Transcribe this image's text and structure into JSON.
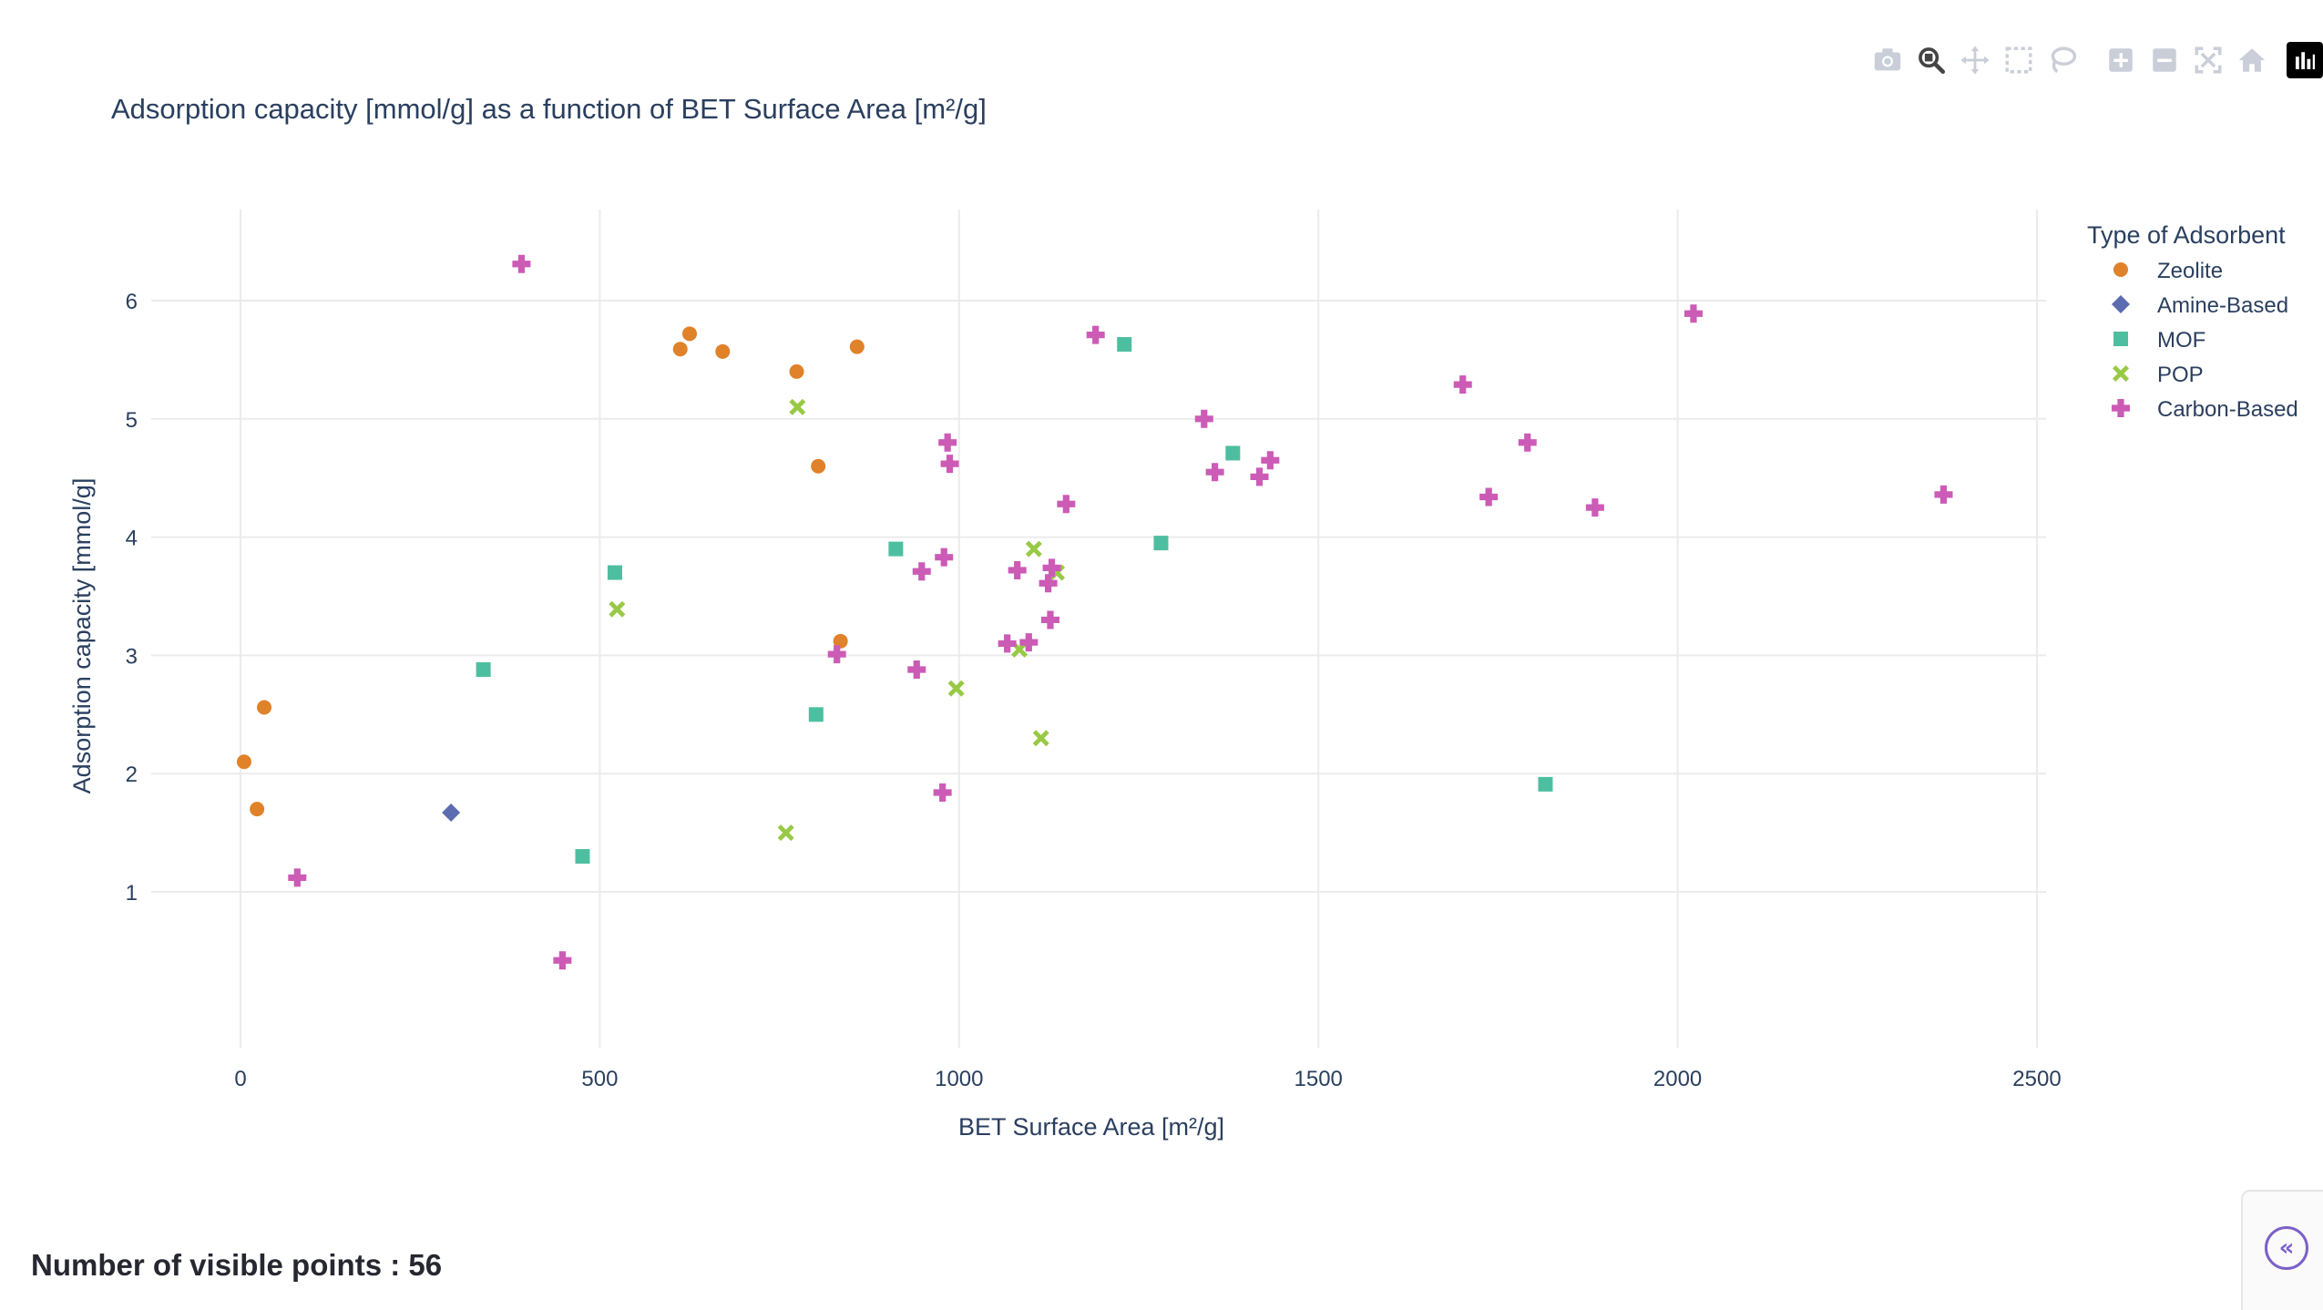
{
  "modebar": {
    "buttons": [
      "camera-icon",
      "zoom-icon",
      "pan-icon",
      "box-select-icon",
      "lasso-icon",
      "zoom-in-icon",
      "zoom-out-icon",
      "autoscale-icon",
      "reset-axes-icon",
      "plotly-logo-icon"
    ]
  },
  "footer": {
    "visible_points_text": "Number of visible points : 56"
  },
  "sidebar_toggle": {
    "label": "«",
    "icon": "chevron-double-left-icon"
  },
  "colors": {
    "Zeolite": "#e0822a",
    "Amine-Based": "#5c6cb0",
    "MOF": "#4dbfa0",
    "POP": "#98c944",
    "Carbon-Based": "#cc5bb6",
    "grid": "#ebebeb",
    "axis_text": "#2a3f5f"
  },
  "chart_data": {
    "type": "scatter",
    "title": "Adsorption capacity [mmol/g] as a function of BET Surface Area [m²/g]",
    "xlabel": "BET Surface Area [m²/g]",
    "ylabel": "Adsorption capacity [mmol/g]",
    "xlim": [
      -200,
      2500
    ],
    "ylim": [
      0.2,
      6.7
    ],
    "xticks": [
      0,
      500,
      1000,
      1500,
      2000,
      2500
    ],
    "yticks": [
      1,
      2,
      3,
      4,
      5,
      6
    ],
    "grid": true,
    "legend": {
      "title": "Type of Adsorbent",
      "position": "top-right"
    },
    "series": [
      {
        "name": "Zeolite",
        "symbol": "circle",
        "points": [
          [
            5,
            2.1
          ],
          [
            23,
            1.7
          ],
          [
            33,
            2.56
          ],
          [
            612,
            5.59
          ],
          [
            625,
            5.72
          ],
          [
            671,
            5.57
          ],
          [
            774,
            5.4
          ],
          [
            804,
            4.6
          ],
          [
            835,
            3.12
          ],
          [
            858,
            5.61
          ]
        ]
      },
      {
        "name": "Amine-Based",
        "symbol": "diamond",
        "points": [
          [
            293,
            1.67
          ]
        ]
      },
      {
        "name": "MOF",
        "symbol": "square",
        "points": [
          [
            338,
            2.88
          ],
          [
            476,
            1.3
          ],
          [
            521,
            3.7
          ],
          [
            801,
            2.5
          ],
          [
            912,
            3.9
          ],
          [
            1230,
            5.63
          ],
          [
            1281,
            3.95
          ],
          [
            1381,
            4.71
          ],
          [
            1816,
            1.91
          ]
        ]
      },
      {
        "name": "POP",
        "symbol": "x",
        "points": [
          [
            524,
            3.39
          ],
          [
            759,
            1.5
          ],
          [
            775,
            5.1
          ],
          [
            996,
            2.72
          ],
          [
            1084,
            3.05
          ],
          [
            1104,
            3.9
          ],
          [
            1114,
            2.3
          ],
          [
            1136,
            3.7
          ]
        ]
      },
      {
        "name": "Carbon-Based",
        "symbol": "cross",
        "points": [
          [
            79,
            1.12
          ],
          [
            391,
            6.31
          ],
          [
            448,
            0.42
          ],
          [
            830,
            3.01
          ],
          [
            941,
            2.88
          ],
          [
            948,
            3.71
          ],
          [
            977,
            1.84
          ],
          [
            979,
            3.83
          ],
          [
            984,
            4.8
          ],
          [
            987,
            4.62
          ],
          [
            1067,
            3.1
          ],
          [
            1081,
            3.72
          ],
          [
            1097,
            3.11
          ],
          [
            1124,
            3.61
          ],
          [
            1127,
            3.3
          ],
          [
            1129,
            3.74
          ],
          [
            1149,
            4.28
          ],
          [
            1190,
            5.71
          ],
          [
            1341,
            5.0
          ],
          [
            1356,
            4.55
          ],
          [
            1418,
            4.51
          ],
          [
            1433,
            4.65
          ],
          [
            1701,
            5.29
          ],
          [
            1737,
            4.34
          ],
          [
            1791,
            4.8
          ],
          [
            1885,
            4.25
          ],
          [
            2022,
            5.89
          ],
          [
            2370,
            4.36
          ]
        ]
      }
    ]
  }
}
